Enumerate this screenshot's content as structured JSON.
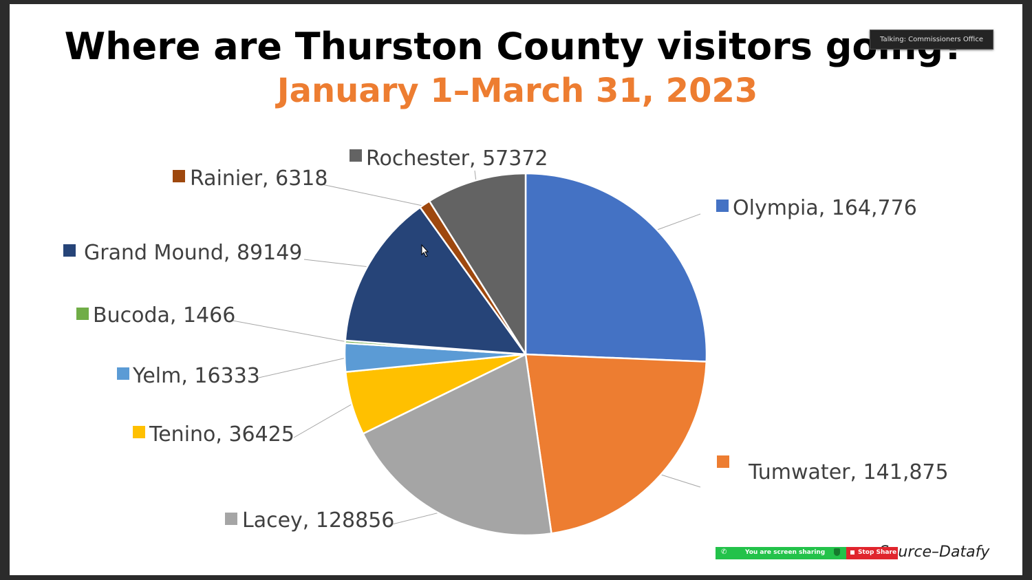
{
  "chart_data": {
    "type": "pie",
    "title": "Where are Thurston County visitors going?",
    "subtitle": "January 1–March 31, 2023",
    "source": "Source–Datafy",
    "legend": "none",
    "slices": [
      {
        "label": "Olympia, 164,776",
        "name": "Olympia",
        "value": 164776,
        "color": "#4472c4"
      },
      {
        "label": "Tumwater, 141,875",
        "name": "Tumwater",
        "value": 141875,
        "color": "#ed7d31"
      },
      {
        "label": "Lacey, 128856",
        "name": "Lacey",
        "value": 128856,
        "color": "#a5a5a5"
      },
      {
        "label": "Tenino, 36425",
        "name": "Tenino",
        "value": 36425,
        "color": "#ffc000"
      },
      {
        "label": "Yelm, 16333",
        "name": "Yelm",
        "value": 16333,
        "color": "#5b9bd5"
      },
      {
        "label": "Bucoda, 1466",
        "name": "Bucoda",
        "value": 1466,
        "color": "#70ad47"
      },
      {
        "label": "Grand Mound, 89149",
        "name": "Grand Mound",
        "value": 89149,
        "color": "#264478"
      },
      {
        "label": "Rainier, 6318",
        "name": "Rainier",
        "value": 6318,
        "color": "#9e480e"
      },
      {
        "label": "Rochester, 57372",
        "name": "Rochester",
        "value": 57372,
        "color": "#636363"
      }
    ]
  },
  "title_color": "#000000",
  "subtitle_color": "#ed7d31",
  "overlay": {
    "talking": "Talking: Commissioners Office",
    "sharing": "You are screen sharing",
    "stop_share": "Stop Share"
  }
}
